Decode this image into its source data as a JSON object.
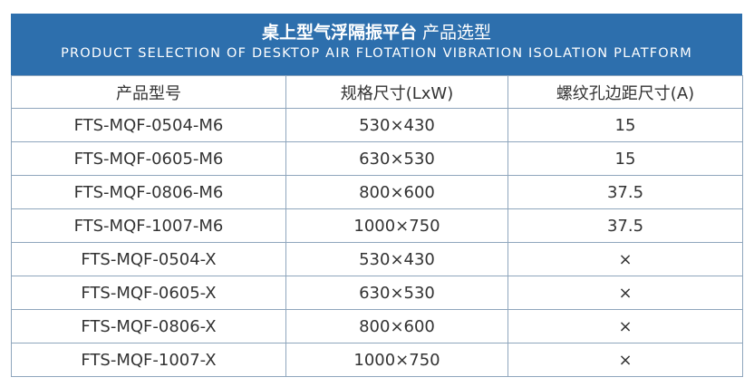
{
  "header": {
    "title_bold": "桌上型气浮隔振平台",
    "title_normal": "产品选型",
    "subtitle": "PRODUCT SELECTION OF DESKTOP AIR FLOTATION VIBRATION ISOLATION PLATFORM"
  },
  "columns": [
    "产品型号",
    "规格尺寸(LxW)",
    "螺纹孔边距尺寸(A)"
  ],
  "rows": [
    [
      "FTS-MQF-0504-M6",
      "530×430",
      "15"
    ],
    [
      "FTS-MQF-0605-M6",
      "630×530",
      "15"
    ],
    [
      "FTS-MQF-0806-M6",
      "800×600",
      "37.5"
    ],
    [
      "FTS-MQF-1007-M6",
      "1000×750",
      "37.5"
    ],
    [
      "FTS-MQF-0504-X",
      "530×430",
      "×"
    ],
    [
      "FTS-MQF-0605-X",
      "630×530",
      "×"
    ],
    [
      "FTS-MQF-0806-X",
      "800×600",
      "×"
    ],
    [
      "FTS-MQF-1007-X",
      "1000×750",
      "×"
    ]
  ],
  "colors": {
    "header_bg": "#2d6fad",
    "border": "#8fa6bd",
    "text": "#333333"
  }
}
